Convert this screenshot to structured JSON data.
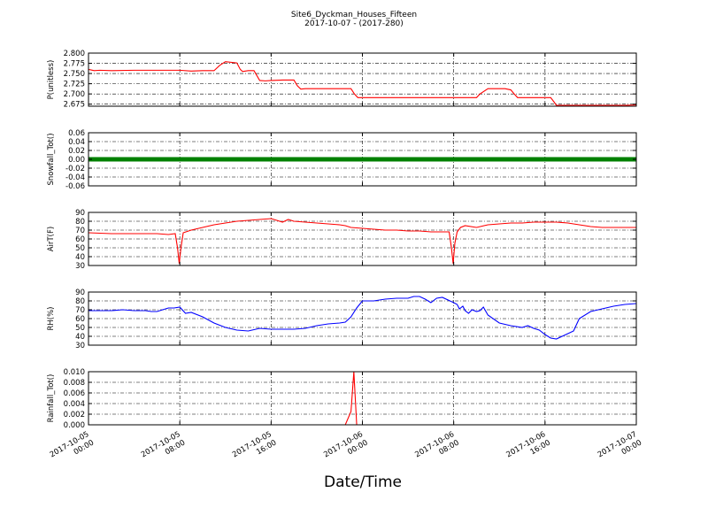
{
  "title": {
    "line1": "Site6_Dyckman_Houses_Fifteen",
    "line2": "2017-10-07 - (2017-280)"
  },
  "xlabel": "Date/Time",
  "x_ticks": [
    {
      "t": 0,
      "label": [
        "2017-10-05",
        "00:00"
      ]
    },
    {
      "t": 8,
      "label": [
        "2017-10-05",
        "08:00"
      ]
    },
    {
      "t": 16,
      "label": [
        "2017-10-05",
        "16:00"
      ]
    },
    {
      "t": 24,
      "label": [
        "2017-10-06",
        "00:00"
      ]
    },
    {
      "t": 32,
      "label": [
        "2017-10-06",
        "08:00"
      ]
    },
    {
      "t": 40,
      "label": [
        "2017-10-06",
        "16:00"
      ]
    },
    {
      "t": 48,
      "label": [
        "2017-10-07",
        "00:00"
      ]
    }
  ],
  "colors": {
    "red": "#ff0000",
    "green": "#008000",
    "blue": "#0000ff"
  },
  "chart_data": [
    {
      "type": "line",
      "ylabel": "P(unitless)",
      "ylim": [
        2.67,
        2.8
      ],
      "yticks": [
        2.675,
        2.7,
        2.725,
        2.75,
        2.775,
        2.8
      ],
      "yfmt": 3,
      "color": "#ff0000",
      "x": [
        0,
        0.5,
        1,
        2,
        4,
        6,
        8,
        9,
        10,
        11,
        11.5,
        12,
        13,
        13.3,
        13.5,
        14,
        14.5,
        15,
        15.5,
        16,
        17,
        18,
        18.3,
        18.6,
        19,
        20,
        21,
        22,
        23,
        23.3,
        23.6,
        24,
        25,
        26,
        27,
        28,
        29,
        30,
        31,
        32,
        33,
        34,
        34.3,
        35,
        36,
        36.5,
        37,
        37.3,
        37.6,
        38,
        39,
        40,
        40.5,
        40.8,
        41,
        42,
        43,
        44,
        45,
        46,
        47,
        48
      ],
      "y": [
        2.76,
        2.757,
        2.758,
        2.757,
        2.758,
        2.758,
        2.758,
        2.756,
        2.757,
        2.757,
        2.77,
        2.779,
        2.776,
        2.76,
        2.755,
        2.757,
        2.757,
        2.733,
        2.732,
        2.733,
        2.734,
        2.734,
        2.72,
        2.712,
        2.713,
        2.713,
        2.713,
        2.713,
        2.713,
        2.7,
        2.691,
        2.691,
        2.691,
        2.691,
        2.691,
        2.691,
        2.691,
        2.691,
        2.691,
        2.691,
        2.691,
        2.691,
        2.7,
        2.713,
        2.713,
        2.713,
        2.71,
        2.7,
        2.691,
        2.691,
        2.691,
        2.691,
        2.691,
        2.68,
        2.672,
        2.672,
        2.672,
        2.672,
        2.672,
        2.672,
        2.672,
        2.673
      ]
    },
    {
      "type": "scatter",
      "ylabel": "Snowfall_Tot()",
      "ylim": [
        -0.06,
        0.06
      ],
      "yticks": [
        -0.06,
        -0.04,
        -0.02,
        0.0,
        0.02,
        0.04,
        0.06
      ],
      "yfmt": 2,
      "color": "#008000",
      "x": [
        0,
        48
      ],
      "y": [
        0,
        0
      ],
      "dense_markers": true
    },
    {
      "type": "line",
      "ylabel": "AirT(F)",
      "ylim": [
        30,
        90
      ],
      "yticks": [
        30,
        40,
        50,
        60,
        70,
        80,
        90
      ],
      "yfmt": 0,
      "color": "#ff0000",
      "x": [
        0,
        1,
        2,
        3,
        4,
        5,
        6,
        7,
        7.6,
        7.8,
        7.95,
        8.1,
        8.3,
        9,
        10,
        11,
        12,
        13,
        14,
        15,
        16,
        16.5,
        17,
        17.5,
        18,
        19,
        20,
        21,
        22,
        22.5,
        23,
        24,
        25,
        26,
        27,
        28,
        29,
        30,
        31,
        31.6,
        31.8,
        31.95,
        32.1,
        32.3,
        32.6,
        33,
        34,
        35,
        36,
        37,
        38,
        39,
        40,
        41,
        42,
        43,
        44,
        45,
        46,
        47,
        48
      ],
      "y": [
        67,
        66.5,
        66,
        66,
        66,
        66,
        66,
        65,
        66,
        50,
        32,
        50,
        67,
        70,
        73,
        76,
        78,
        80,
        81,
        82,
        83,
        81,
        79,
        82,
        80,
        79,
        78,
        77,
        76,
        75,
        73,
        72,
        71,
        70,
        70,
        69,
        69,
        68,
        68,
        68,
        50,
        32,
        55,
        68,
        73,
        75,
        73,
        76,
        77,
        78,
        78,
        79,
        79,
        79,
        78,
        76,
        74,
        73,
        73,
        73,
        73
      ]
    },
    {
      "type": "line",
      "ylabel": "RH(%)",
      "ylim": [
        30,
        90
      ],
      "yticks": [
        30,
        40,
        50,
        60,
        70,
        80,
        90
      ],
      "yfmt": 0,
      "color": "#0000ff",
      "x": [
        0,
        1,
        2,
        3,
        4,
        5,
        5.5,
        6,
        7,
        7.5,
        8,
        8.5,
        9,
        10,
        11,
        12,
        13,
        14,
        15,
        16,
        17,
        18,
        19,
        20,
        21,
        22,
        22.5,
        23,
        23.5,
        24,
        25,
        26,
        27,
        28,
        28.5,
        29,
        29.5,
        30,
        30.5,
        31,
        32,
        32.3,
        32.5,
        32.8,
        33,
        33.3,
        33.6,
        34,
        34.3,
        34.6,
        35,
        36,
        37,
        38,
        38.5,
        39,
        39.5,
        40,
        40.5,
        41,
        41.5,
        42,
        42.5,
        43,
        44,
        45,
        46,
        47,
        48
      ],
      "y": [
        69,
        69,
        69,
        70,
        69,
        69,
        68,
        68,
        72,
        72,
        73,
        66,
        67,
        62,
        55,
        50,
        47,
        46,
        49,
        48,
        48,
        48,
        49,
        52,
        54,
        55,
        56,
        62,
        72,
        80,
        80,
        82,
        83,
        83,
        85,
        85,
        82,
        78,
        83,
        84,
        78,
        76,
        71,
        74,
        69,
        66,
        70,
        68,
        69,
        73,
        64,
        55,
        52,
        50,
        52,
        49,
        47,
        42,
        38,
        37,
        40,
        43,
        46,
        60,
        68,
        71,
        74,
        76,
        77
      ]
    },
    {
      "type": "line",
      "ylabel": "Rainfall_Tot()",
      "ylim": [
        0,
        0.01
      ],
      "yticks": [
        0.0,
        0.002,
        0.004,
        0.006,
        0.008,
        0.01
      ],
      "yfmt": 3,
      "color": "#ff0000",
      "x": [
        0,
        22.5,
        23.0,
        23.25,
        23.5,
        48
      ],
      "y": [
        0,
        0,
        0.0025,
        0.01,
        0,
        0
      ]
    }
  ]
}
